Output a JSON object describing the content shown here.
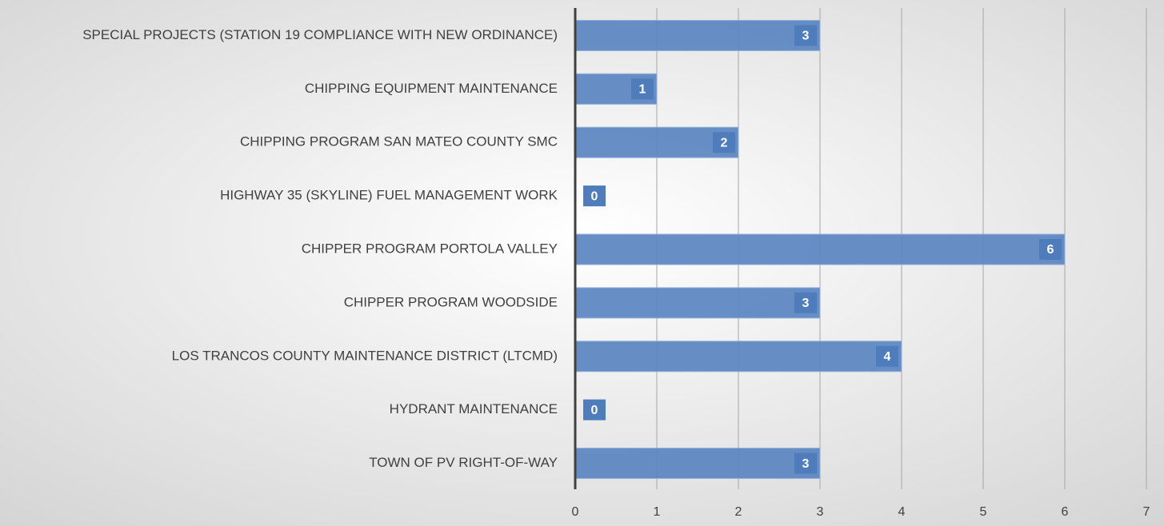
{
  "chart_data": {
    "type": "bar",
    "orientation": "horizontal",
    "categories": [
      "SPECIAL PROJECTS (STATION 19 COMPLIANCE WITH NEW ORDINANCE)",
      "CHIPPING EQUIPMENT MAINTENANCE",
      "CHIPPING PROGRAM SAN MATEO COUNTY SMC",
      "HIGHWAY 35 (SKYLINE) FUEL MANAGEMENT WORK",
      "CHIPPER PROGRAM PORTOLA VALLEY",
      "CHIPPER PROGRAM WOODSIDE",
      "LOS TRANCOS COUNTY MAINTENANCE DISTRICT (LTCMD)",
      "HYDRANT MAINTENANCE",
      "TOWN OF PV RIGHT-OF-WAY"
    ],
    "values": [
      3,
      1,
      2,
      0,
      6,
      3,
      4,
      0,
      3
    ],
    "color": "#5a86c1",
    "xlim": [
      0,
      7
    ],
    "xticks": [
      0,
      1,
      2,
      3,
      4,
      5,
      6,
      7
    ],
    "grid": true
  }
}
